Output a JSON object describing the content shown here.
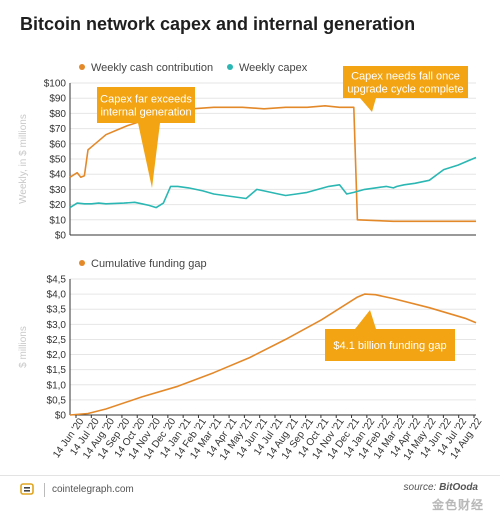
{
  "title": "Bitcoin network capex and internal generation",
  "colors": {
    "orange": "#e3892a",
    "teal": "#2bb7b3",
    "callout": "#f2a413",
    "grid": "#e6e6e6",
    "axis": "#333333"
  },
  "footer": {
    "site": "cointelegraph.com",
    "source_prefix": "source: ",
    "source_name": "BitOoda",
    "watermark": "金色财经"
  },
  "chart_data": [
    {
      "type": "line",
      "legend": [
        "Weekly cash contribution",
        "Weekly capex"
      ],
      "ylabel": "Weekly, in $ millions",
      "ylim": [
        0,
        100
      ],
      "yticks": [
        "$0",
        "$10",
        "$20",
        "$30",
        "$40",
        "$50",
        "$60",
        "$70",
        "$80",
        "$90",
        "$100"
      ],
      "grid": true,
      "series": [
        {
          "name": "Weekly cash contribution",
          "color": "#e3892a",
          "x": [
            0,
            2,
            3,
            4,
            5,
            6,
            8,
            10,
            13,
            16,
            20,
            24,
            30,
            34,
            40,
            44,
            48,
            54,
            60,
            66,
            71,
            75,
            79,
            80,
            85,
            90,
            100,
            110,
            113
          ],
          "y": [
            38,
            41,
            38,
            39,
            56,
            58,
            62,
            66,
            69,
            72,
            75,
            79,
            80,
            83,
            84,
            84,
            84,
            83,
            84,
            84,
            85,
            84,
            84,
            10,
            9.5,
            9,
            9,
            9,
            9
          ]
        },
        {
          "name": "Weekly capex",
          "color": "#2bb7b3",
          "x": [
            0,
            2,
            4,
            6,
            8,
            10,
            15,
            18,
            20,
            22,
            24,
            26,
            28,
            30,
            33,
            35,
            37,
            40,
            43,
            46,
            49,
            52,
            54,
            58,
            60,
            63,
            66,
            69,
            72,
            75,
            77,
            79,
            82,
            85,
            88,
            90,
            91,
            93,
            96,
            100,
            104,
            108,
            111,
            113
          ],
          "y": [
            18,
            21,
            20.5,
            20.5,
            21,
            20.5,
            21,
            21.5,
            20.5,
            19.5,
            18,
            21,
            32,
            32,
            31,
            30,
            29,
            27,
            26,
            25,
            24,
            30,
            29,
            27,
            26,
            27,
            28,
            30,
            32,
            33,
            27,
            28,
            30,
            31,
            32,
            31,
            32,
            33,
            34,
            36,
            43,
            46,
            49,
            51
          ]
        }
      ]
    },
    {
      "type": "line",
      "legend": [
        "Cumulative funding gap"
      ],
      "ylabel": "$ millions",
      "ylim": [
        0,
        4.5
      ],
      "yticks": [
        "$0",
        "$0,5",
        "$1,0",
        "$1,5",
        "$2,0",
        "$2,5",
        "$3,0",
        "$3,5",
        "$4,0",
        "$4,5"
      ],
      "grid": true,
      "series": [
        {
          "name": "Cumulative funding gap",
          "color": "#e3892a",
          "x": [
            0,
            5,
            10,
            20,
            30,
            40,
            50,
            60,
            70,
            80,
            82,
            85,
            90,
            100,
            110,
            113
          ],
          "y": [
            0,
            0.05,
            0.2,
            0.6,
            0.95,
            1.4,
            1.9,
            2.5,
            3.15,
            3.9,
            4.0,
            3.98,
            3.85,
            3.55,
            3.2,
            3.05
          ]
        }
      ],
      "xticks": [
        "14 Jun '20",
        "14 Jul '20",
        "14 Aug '20",
        "14 Sep '20",
        "14 Oct '20",
        "14 Nov '20",
        "14 Dec '20",
        "14 Jan '21",
        "14 Feb '21",
        "14 Mar '21",
        "14 Apr '21",
        "14 May '21",
        "14 Jun '21",
        "14 Jul '21",
        "14 Aug '21",
        "14 Sep '21",
        "14 Oct '21",
        "14 Nov '21",
        "14 Dec '21",
        "14 Jan '22",
        "14 Feb '22",
        "14 Mar '22",
        "14 Apr '22",
        "14 May '22",
        "14 Jun '22",
        "14 Jul '22",
        "14 Aug '22"
      ]
    }
  ],
  "callouts": [
    {
      "id": "capex-exceeds",
      "lines": [
        "Capex far exceeds",
        "internal generation"
      ]
    },
    {
      "id": "capex-fall",
      "lines": [
        "Capex needs fall once",
        "upgrade cycle complete"
      ]
    },
    {
      "id": "funding-gap",
      "lines": [
        "$4.1 billion funding gap"
      ]
    }
  ]
}
